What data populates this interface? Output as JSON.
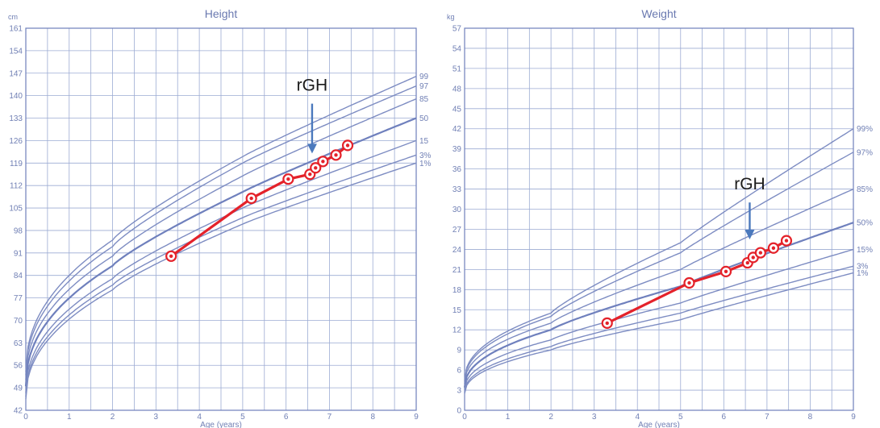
{
  "chart_data": [
    {
      "type": "line",
      "title": "Height",
      "unit": "cm",
      "xlabel": "Age (years)",
      "xlim": [
        0,
        9
      ],
      "ylim": [
        42,
        161
      ],
      "x_ticks": [
        0,
        1,
        2,
        3,
        4,
        5,
        6,
        7,
        8,
        9
      ],
      "y_ticks": [
        42,
        49,
        56,
        63,
        70,
        77,
        84,
        91,
        98,
        105,
        112,
        119,
        126,
        133,
        140,
        147,
        154,
        161
      ],
      "grid": true,
      "percentiles": [
        {
          "name": "99",
          "label": "99",
          "at_0": 54,
          "at_2": 95,
          "at_5": 121,
          "at_9": 146
        },
        {
          "name": "97",
          "label": "97",
          "at_0": 53,
          "at_2": 93,
          "at_5": 119,
          "at_9": 143
        },
        {
          "name": "85",
          "label": "85",
          "at_0": 51.5,
          "at_2": 90,
          "at_5": 115,
          "at_9": 139
        },
        {
          "name": "50",
          "label": "50",
          "at_0": 49.5,
          "at_2": 87,
          "at_5": 110,
          "at_9": 133
        },
        {
          "name": "15",
          "label": "15",
          "at_0": 47.5,
          "at_2": 83,
          "at_5": 105,
          "at_9": 126
        },
        {
          "name": "3",
          "label": "3%",
          "at_0": 46.3,
          "at_2": 81,
          "at_5": 102,
          "at_9": 121.5
        },
        {
          "name": "1",
          "label": "1%",
          "at_0": 45.5,
          "at_2": 79.5,
          "at_5": 100,
          "at_9": 119
        }
      ],
      "series": [
        {
          "x": [
            3.35,
            5.2,
            6.05,
            6.55,
            6.68,
            6.85,
            7.15,
            7.42
          ],
          "y": [
            90,
            108,
            114,
            115.5,
            117.5,
            119.5,
            121.5,
            124.5
          ]
        }
      ],
      "annotation": {
        "text": "rGH",
        "arrow_x": 6.6,
        "arrow_from_y": 137.5,
        "arrow_to_y": 122
      }
    },
    {
      "type": "line",
      "title": "Weight",
      "unit": "kg",
      "xlabel": "Age (years)",
      "xlim": [
        0,
        9
      ],
      "ylim": [
        0,
        57
      ],
      "x_ticks": [
        0,
        1,
        2,
        3,
        4,
        5,
        6,
        7,
        8,
        9
      ],
      "y_ticks": [
        0,
        3,
        6,
        9,
        12,
        15,
        18,
        21,
        24,
        27,
        30,
        33,
        36,
        39,
        42,
        45,
        48,
        51,
        54,
        57
      ],
      "grid": true,
      "percentiles": [
        {
          "name": "99",
          "label": "99%",
          "at_0": 4.5,
          "at_2": 14.5,
          "at_5": 25,
          "at_9": 42
        },
        {
          "name": "97",
          "label": "97%",
          "at_0": 4.3,
          "at_2": 14,
          "at_5": 23.5,
          "at_9": 38.5
        },
        {
          "name": "85",
          "label": "85%",
          "at_0": 4,
          "at_2": 13,
          "at_5": 21,
          "at_9": 33
        },
        {
          "name": "50",
          "label": "50%",
          "at_0": 3.4,
          "at_2": 12,
          "at_5": 18.5,
          "at_9": 28
        },
        {
          "name": "15",
          "label": "15%",
          "at_0": 3,
          "at_2": 10.5,
          "at_5": 16,
          "at_9": 24
        },
        {
          "name": "3",
          "label": "3%",
          "at_0": 2.7,
          "at_2": 9.5,
          "at_5": 14.5,
          "at_9": 21.5
        },
        {
          "name": "1",
          "label": "1%",
          "at_0": 2.5,
          "at_2": 9,
          "at_5": 13.5,
          "at_9": 20.5
        }
      ],
      "series": [
        {
          "x": [
            3.3,
            5.2,
            6.05,
            6.55,
            6.68,
            6.85,
            7.15,
            7.45
          ],
          "y": [
            13,
            19,
            20.7,
            22,
            22.8,
            23.5,
            24.2,
            25.3
          ]
        }
      ],
      "annotation": {
        "text": "rGH",
        "arrow_x": 6.6,
        "arrow_from_y": 31,
        "arrow_to_y": 25.5
      }
    }
  ]
}
